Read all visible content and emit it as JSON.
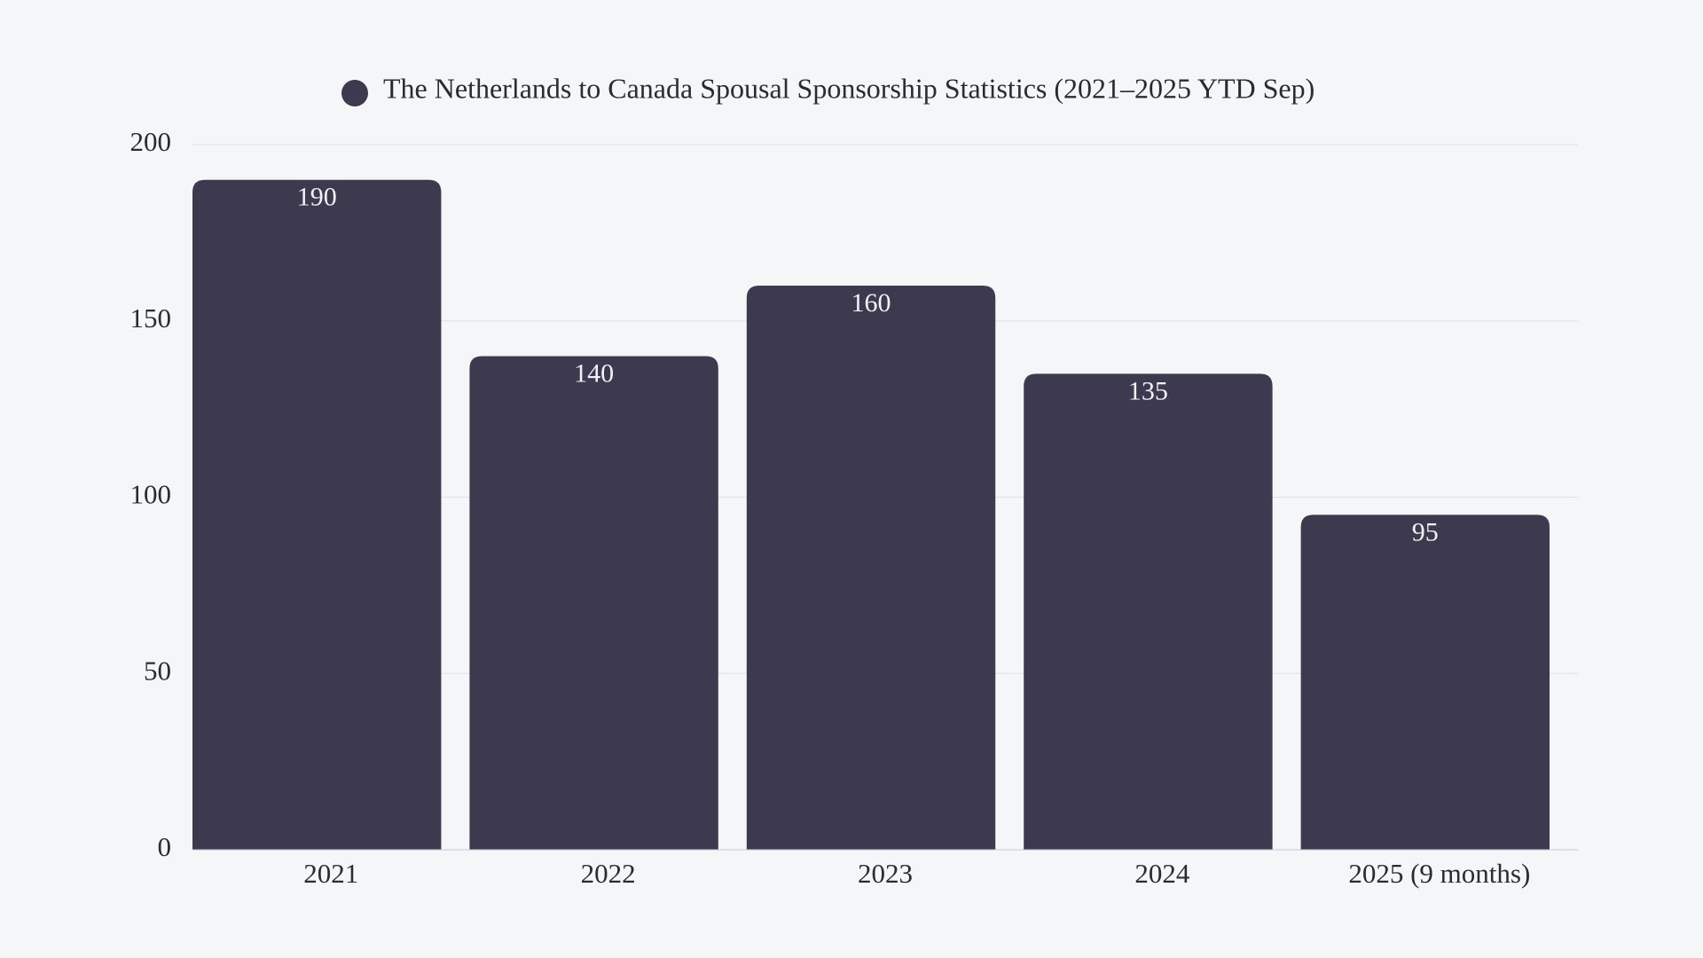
{
  "chart_data": {
    "type": "bar",
    "categories": [
      "2021",
      "2022",
      "2023",
      "2024",
      "2025 (9 months)"
    ],
    "series": [
      {
        "name": "The Netherlands to Canada Spousal Sponsorship Statistics (2021–2025 YTD Sep)",
        "color": "#3d3a50",
        "values": [
          190,
          140,
          160,
          135,
          95
        ]
      }
    ],
    "ylim": [
      0,
      200
    ],
    "yticks": [
      0,
      50,
      100,
      150,
      200
    ],
    "grid": true,
    "legend": "top"
  }
}
